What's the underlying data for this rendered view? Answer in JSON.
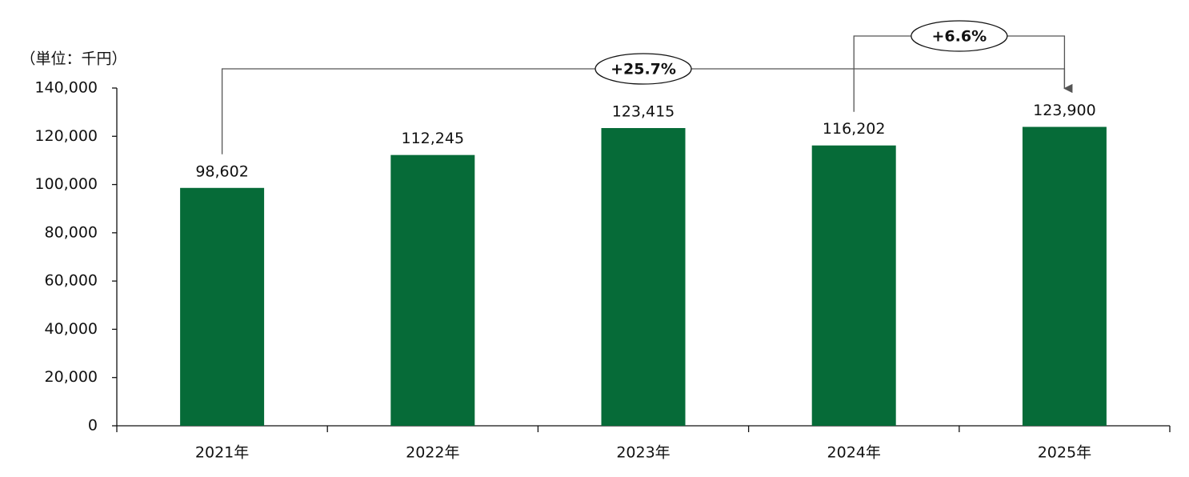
{
  "chart_data": {
    "type": "bar",
    "unit_label": "（単位：千円）",
    "categories": [
      "2021年",
      "2022年",
      "2023年",
      "2024年",
      "2025年"
    ],
    "values": [
      98602,
      112245,
      123415,
      116202,
      123900
    ],
    "value_labels": [
      "98,602",
      "112,245",
      "123,415",
      "116,202",
      "123,900"
    ],
    "color": "#066b38",
    "ylim": [
      0,
      140000
    ],
    "yticks": [
      0,
      {
        "value": 20000,
        "label": "20,000"
      },
      {
        "value": 40000,
        "label": "40,000"
      },
      {
        "value": 60000,
        "label": "60,000"
      },
      {
        "value": 80000,
        "label": "80,000"
      },
      {
        "value": 100000,
        "label": "100,000"
      },
      {
        "value": 120000,
        "label": "120,000"
      },
      {
        "value": 140000,
        "label": "140,000"
      }
    ],
    "annotations": [
      {
        "label": "+25.7%",
        "from": "2021年",
        "to": "2025年"
      },
      {
        "label": "+6.6%",
        "from": "2024年",
        "to": "2025年"
      }
    ]
  }
}
